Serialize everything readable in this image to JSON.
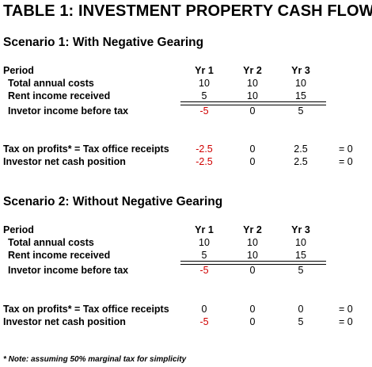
{
  "title": "TABLE 1: INVESTMENT PROPERTY CASH FLOW",
  "columns": [
    "Yr 1",
    "Yr 2",
    "Yr 3"
  ],
  "scenario1": {
    "heading": "Scenario 1: With Negative Gearing",
    "period_label": "Period",
    "costs_label": "Total annual costs",
    "costs": [
      "10",
      "10",
      "10"
    ],
    "rent_label": "Rent income received",
    "rent": [
      "5",
      "10",
      "15"
    ],
    "income_label": "Invetor income before tax",
    "income": [
      "-5",
      "0",
      "5"
    ],
    "tax_label": "Tax on profits* = Tax office receipts",
    "tax": [
      "-2.5",
      "0",
      "2.5"
    ],
    "tax_eq": "= 0",
    "net_label": "Investor net cash position",
    "net": [
      "-2.5",
      "0",
      "2.5"
    ],
    "net_eq": "= 0"
  },
  "scenario2": {
    "heading": "Scenario 2: Without Negative Gearing",
    "period_label": "Period",
    "costs_label": "Total annual costs",
    "costs": [
      "10",
      "10",
      "10"
    ],
    "rent_label": "Rent income received",
    "rent": [
      "5",
      "10",
      "15"
    ],
    "income_label": "Invetor income before tax",
    "income": [
      "-5",
      "0",
      "5"
    ],
    "tax_label": "Tax on profits* = Tax office receipts",
    "tax": [
      "0",
      "0",
      "0"
    ],
    "tax_eq": "= 0",
    "net_label": "Investor net cash position",
    "net": [
      "-5",
      "0",
      "5"
    ],
    "net_eq": "= 0"
  },
  "note": "* Note: assuming 50% marginal tax for simplicity",
  "colors": {
    "negative": "#d00000",
    "text": "#000000"
  }
}
